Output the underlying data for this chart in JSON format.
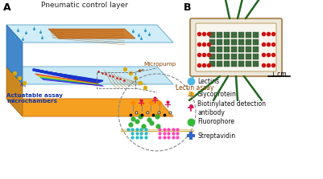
{
  "fig_width": 4.01,
  "fig_height": 2.23,
  "dpi": 100,
  "bg_color": "#ffffff",
  "panel_a_label": "A",
  "panel_b_label": "B",
  "title_text": "Pneumatic control layer",
  "micropump_label": "Micropump",
  "lectin_assay_label": "Lectin assay",
  "actuatable_label": "Actuatable assay\nmicrochambers",
  "legend_items": [
    {
      "icon_color": "#4db8e8",
      "label": "Lectins"
    },
    {
      "icon_color": "#ffaa00",
      "label": "Glycoprotein"
    },
    {
      "icon_color": "#dd1155",
      "label": "Biotinylated detection\nantibody"
    },
    {
      "icon_color": "#33bb33",
      "label": "Fluorophore"
    },
    {
      "icon_color": "#3366cc",
      "label": "Streptavidin"
    }
  ],
  "scale_bar_label": "1 cm",
  "layer1_color": "#b8ddf0",
  "layer2_color": "#f5a020",
  "blue_lines_color": "#1a35cc",
  "rainbow_colors": [
    "#ee1111",
    "#ee5511",
    "#ee9911",
    "#eecc11",
    "#99cc11",
    "#33aa11",
    "#1188cc",
    "#1144dd",
    "#5511dd"
  ],
  "yellow_dots_color": "#ddaa00",
  "dashed_circle_color": "#888888",
  "green_lines_color": "#226622",
  "chip_border_color": "#b09060",
  "chip_bg_color": "#f2ece0",
  "red_dots_color": "#cc1111",
  "green_grid_color": "#3d6b3d",
  "orange_pump_color": "#d08030"
}
